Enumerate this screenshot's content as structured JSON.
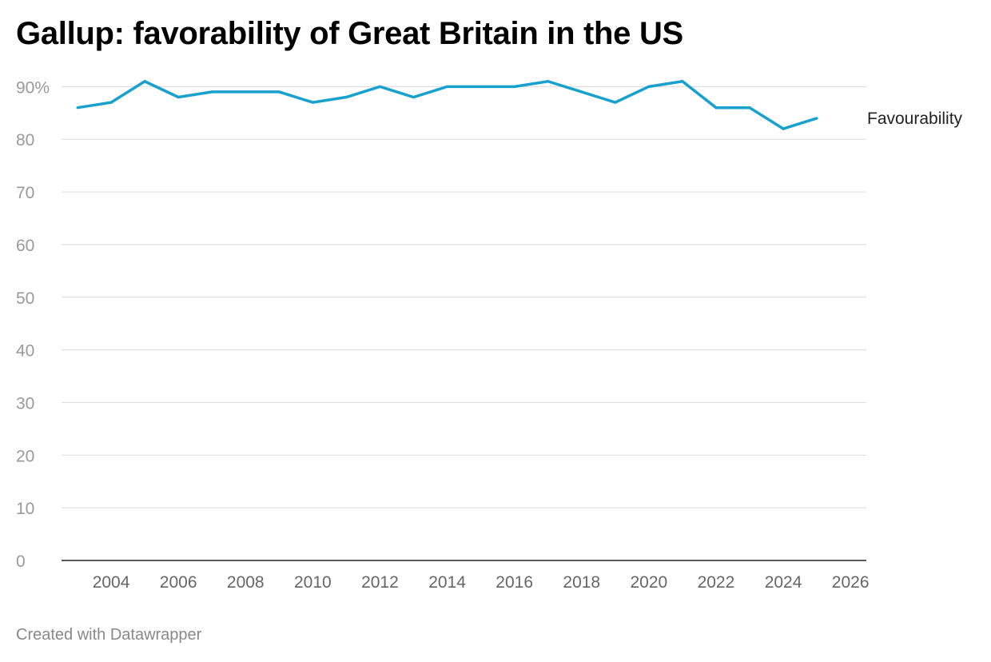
{
  "chart_data": {
    "type": "line",
    "title": "Gallup: favorability of Great Britain in the US",
    "footer": "Created with Datawrapper",
    "xlabel": "",
    "ylabel": "",
    "x": [
      2003,
      2004,
      2005,
      2006,
      2007,
      2008,
      2009,
      2010,
      2011,
      2012,
      2013,
      2014,
      2015,
      2016,
      2017,
      2018,
      2019,
      2020,
      2021,
      2022,
      2023,
      2024,
      2025
    ],
    "series": [
      {
        "name": "Favourability",
        "color": "#18a1cd",
        "values": [
          86,
          87,
          91,
          88,
          89,
          89,
          89,
          87,
          88,
          90,
          88,
          90,
          90,
          90,
          91,
          89,
          87,
          90,
          91,
          86,
          86,
          82,
          84
        ]
      }
    ],
    "ylim": [
      0,
      90
    ],
    "xlim": [
      2002.5,
      2026
    ],
    "yticks": [
      "0",
      "10",
      "20",
      "30",
      "40",
      "50",
      "60",
      "70",
      "80",
      "90%"
    ],
    "ytick_values": [
      0,
      10,
      20,
      30,
      40,
      50,
      60,
      70,
      80,
      90
    ],
    "xticks": [
      "2004",
      "2006",
      "2008",
      "2010",
      "2012",
      "2014",
      "2016",
      "2018",
      "2020",
      "2022",
      "2024",
      "2026"
    ],
    "xtick_values": [
      2004,
      2006,
      2008,
      2010,
      2012,
      2014,
      2016,
      2018,
      2020,
      2022,
      2024,
      2026
    ],
    "grid": true,
    "legend": "direct-label-right"
  }
}
